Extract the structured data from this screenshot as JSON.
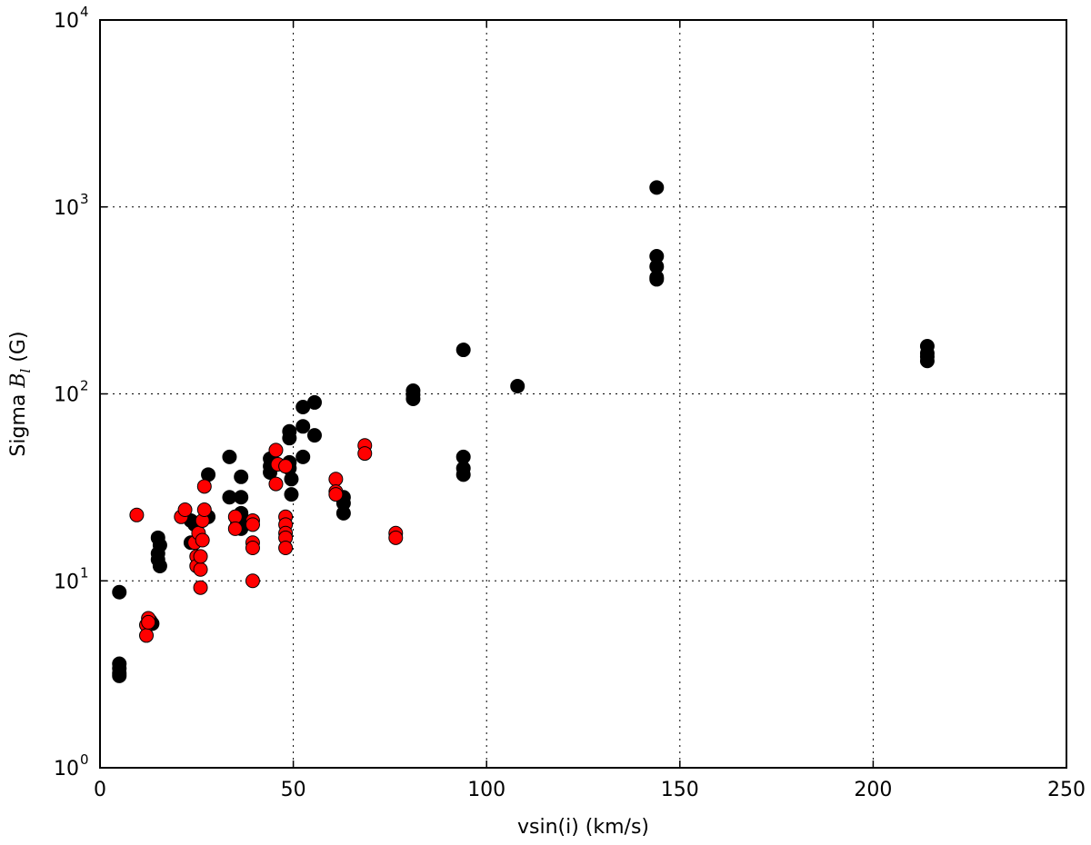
{
  "chart_data": {
    "type": "scatter",
    "xlabel": "vsin(i) (km/s)",
    "ylabel": "Sigma ",
    "ylabel_math": "B",
    "ylabel_sub": "l",
    "ylabel_tail": " (G)",
    "xlim": [
      0,
      250
    ],
    "ylim": [
      1,
      10000
    ],
    "yscale": "log",
    "grid": true,
    "x_ticks": [
      {
        "value": 0,
        "label": "0"
      },
      {
        "value": 50,
        "label": "50"
      },
      {
        "value": 100,
        "label": "100"
      },
      {
        "value": 150,
        "label": "150"
      },
      {
        "value": 200,
        "label": "200"
      },
      {
        "value": 250,
        "label": "250"
      }
    ],
    "y_ticks": [
      {
        "value": 1,
        "base": "10",
        "exp": "0"
      },
      {
        "value": 10,
        "base": "10",
        "exp": "1"
      },
      {
        "value": 100,
        "base": "10",
        "exp": "2"
      },
      {
        "value": 1000,
        "base": "10",
        "exp": "3"
      },
      {
        "value": 10000,
        "base": "10",
        "exp": "4"
      }
    ],
    "series": [
      {
        "color": "#000000",
        "points": [
          [
            5,
            8.7
          ],
          [
            5,
            3.6
          ],
          [
            5,
            3.4
          ],
          [
            5,
            3.2
          ],
          [
            5,
            3.1
          ],
          [
            13,
            6.1
          ],
          [
            13.5,
            5.9
          ],
          [
            15,
            17
          ],
          [
            15,
            14
          ],
          [
            15,
            13
          ],
          [
            15.5,
            15.5
          ],
          [
            15.5,
            12
          ],
          [
            23.5,
            21
          ],
          [
            23.5,
            16
          ],
          [
            24.5,
            20
          ],
          [
            28,
            37
          ],
          [
            28,
            22
          ],
          [
            33.5,
            46
          ],
          [
            33.5,
            28
          ],
          [
            35.5,
            20
          ],
          [
            36.5,
            36
          ],
          [
            36.5,
            28
          ],
          [
            36.5,
            23
          ],
          [
            36.5,
            21
          ],
          [
            36.5,
            19
          ],
          [
            44,
            45
          ],
          [
            44,
            41
          ],
          [
            44,
            38
          ],
          [
            49,
            63
          ],
          [
            49,
            58
          ],
          [
            49,
            43
          ],
          [
            49,
            40
          ],
          [
            49.5,
            35
          ],
          [
            49.5,
            29
          ],
          [
            52.5,
            85
          ],
          [
            52.5,
            67
          ],
          [
            52.5,
            46
          ],
          [
            55.5,
            90
          ],
          [
            55.5,
            60
          ],
          [
            63,
            28
          ],
          [
            63,
            26
          ],
          [
            63,
            23
          ],
          [
            81,
            104
          ],
          [
            81,
            99
          ],
          [
            81,
            94
          ],
          [
            94,
            172
          ],
          [
            94,
            46
          ],
          [
            94,
            40
          ],
          [
            94,
            37
          ],
          [
            108,
            110
          ],
          [
            144,
            1270
          ],
          [
            144,
            545
          ],
          [
            144,
            480
          ],
          [
            144,
            420
          ],
          [
            144,
            410
          ],
          [
            214,
            180
          ],
          [
            214,
            165
          ],
          [
            214,
            158
          ],
          [
            214,
            150
          ]
        ]
      },
      {
        "color": "#ff0000",
        "points": [
          [
            9.5,
            22.5
          ],
          [
            12,
            5.8
          ],
          [
            12,
            5.1
          ],
          [
            12.5,
            6.3
          ],
          [
            12.5,
            6.0
          ],
          [
            21,
            22
          ],
          [
            22,
            24
          ],
          [
            24.5,
            16
          ],
          [
            25,
            13.5
          ],
          [
            25,
            12
          ],
          [
            25.5,
            18
          ],
          [
            26,
            9.2
          ],
          [
            26,
            11.5
          ],
          [
            26,
            13.5
          ],
          [
            26.5,
            16.5
          ],
          [
            26.5,
            21
          ],
          [
            27,
            32
          ],
          [
            27,
            24
          ],
          [
            35,
            22
          ],
          [
            35,
            19
          ],
          [
            39.5,
            21
          ],
          [
            39.5,
            20
          ],
          [
            39.5,
            16
          ],
          [
            39.5,
            15
          ],
          [
            39.5,
            10
          ],
          [
            45.5,
            50
          ],
          [
            45.5,
            33
          ],
          [
            46,
            42
          ],
          [
            48,
            41
          ],
          [
            48,
            22
          ],
          [
            48,
            20
          ],
          [
            48,
            18
          ],
          [
            48,
            17
          ],
          [
            48,
            15
          ],
          [
            61,
            35
          ],
          [
            61,
            30
          ],
          [
            61,
            29
          ],
          [
            68.5,
            53
          ],
          [
            68.5,
            48
          ],
          [
            76.5,
            18
          ],
          [
            76.5,
            17
          ]
        ]
      }
    ]
  }
}
